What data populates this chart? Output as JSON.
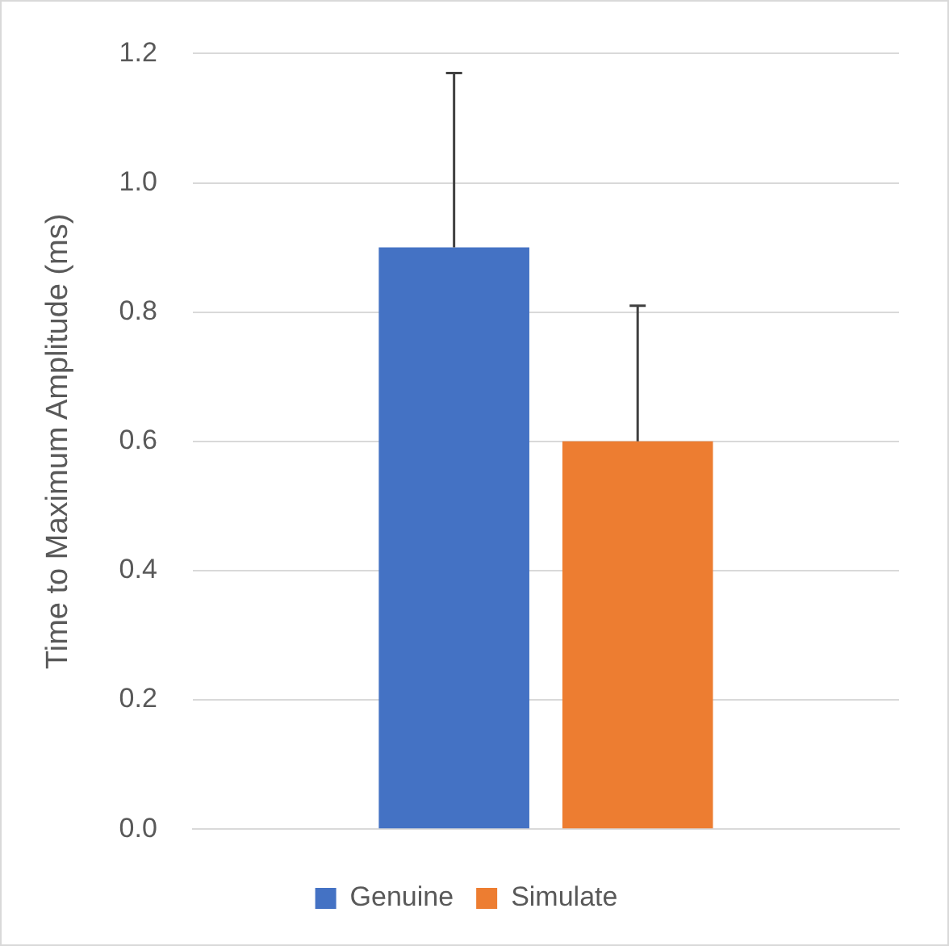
{
  "chart_data": {
    "type": "bar",
    "ylabel": "Time to Maximum Amplitude (ms)",
    "categories": [
      null
    ],
    "series": [
      {
        "name": "Genuine",
        "color": "#4472c4",
        "values": [
          0.9
        ],
        "errors": [
          [
            0.9,
            1.17
          ]
        ]
      },
      {
        "name": "Simulate",
        "color": "#ed7d31",
        "values": [
          0.6
        ],
        "errors": [
          [
            0.6,
            0.81
          ]
        ]
      }
    ],
    "ylim": [
      0,
      1.2
    ],
    "yticks": [
      {
        "value": 0,
        "label": "0.0"
      },
      0.2,
      0.4,
      0.6,
      0.8,
      {
        "value": 1,
        "label": "1.0"
      },
      1.2
    ],
    "grid": "y",
    "legend": "bottom"
  }
}
